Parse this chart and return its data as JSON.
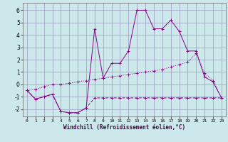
{
  "x": [
    0,
    1,
    2,
    3,
    4,
    5,
    6,
    7,
    8,
    9,
    10,
    11,
    12,
    13,
    14,
    15,
    16,
    17,
    18,
    19,
    20,
    21,
    22,
    23
  ],
  "line1": [
    -0.5,
    -1.2,
    -1.0,
    -0.8,
    -2.2,
    -2.3,
    -2.3,
    -1.9,
    4.5,
    0.5,
    1.7,
    1.7,
    2.7,
    6.0,
    6.0,
    4.5,
    4.5,
    5.2,
    4.3,
    2.7,
    2.7,
    0.6,
    0.2,
    -1.1
  ],
  "line2": [
    -0.5,
    -1.2,
    -1.0,
    -0.8,
    -2.2,
    -2.3,
    -2.3,
    -1.9,
    -1.1,
    -1.1,
    -1.1,
    -1.1,
    -1.1,
    -1.1,
    -1.1,
    -1.1,
    -1.1,
    -1.1,
    -1.1,
    -1.1,
    -1.1,
    -1.1,
    -1.1,
    -1.1
  ],
  "line3": [
    -0.5,
    -0.4,
    -0.2,
    0.0,
    0.0,
    0.1,
    0.2,
    0.3,
    0.4,
    0.5,
    0.6,
    0.7,
    0.8,
    0.9,
    1.0,
    1.1,
    1.2,
    1.4,
    1.6,
    1.8,
    2.5,
    0.9,
    0.3,
    -1.1
  ],
  "bg_color": "#cde8ea",
  "grid_color": "#9999bb",
  "line_color": "#880088",
  "xlabel": "Windchill (Refroidissement éolien,°C)",
  "xlim": [
    -0.5,
    23.5
  ],
  "ylim": [
    -2.6,
    6.6
  ],
  "yticks": [
    -2,
    -1,
    0,
    1,
    2,
    3,
    4,
    5,
    6
  ],
  "xticks": [
    0,
    1,
    2,
    3,
    4,
    5,
    6,
    7,
    8,
    9,
    10,
    11,
    12,
    13,
    14,
    15,
    16,
    17,
    18,
    19,
    20,
    21,
    22,
    23
  ]
}
